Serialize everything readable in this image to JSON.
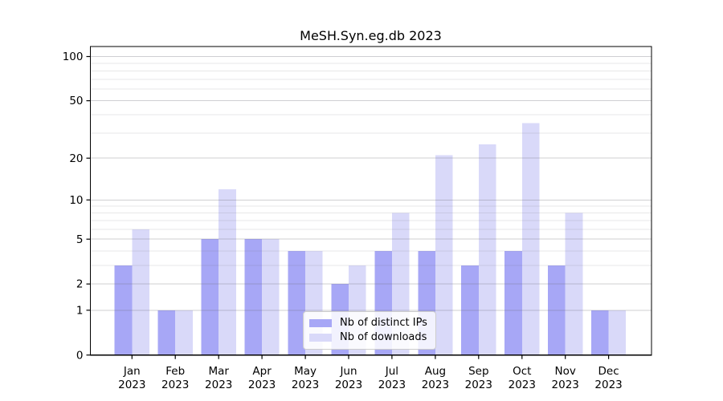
{
  "chart_data": {
    "type": "bar",
    "title": "MeSH.Syn.eg.db 2023",
    "months": [
      "Jan",
      "Feb",
      "Mar",
      "Apr",
      "May",
      "Jun",
      "Jul",
      "Aug",
      "Sep",
      "Oct",
      "Nov",
      "Dec"
    ],
    "year_label": "2023",
    "categories": [
      "Jan 2023",
      "Feb 2023",
      "Mar 2023",
      "Apr 2023",
      "May 2023",
      "Jun 2023",
      "Jul 2023",
      "Aug 2023",
      "Sep 2023",
      "Oct 2023",
      "Nov 2023",
      "Dec 2023"
    ],
    "series": [
      {
        "name": "Nb of distinct IPs",
        "color": "#a7a7f6",
        "values": [
          3,
          1,
          5,
          5,
          4,
          2,
          4,
          4,
          3,
          4,
          3,
          1
        ]
      },
      {
        "name": "Nb of downloads",
        "color": "#d9d9f9",
        "values": [
          6,
          1,
          12,
          5,
          4,
          3,
          8,
          21,
          25,
          35,
          8,
          1
        ]
      }
    ],
    "yscale": "log1p",
    "yticks": [
      0,
      1,
      2,
      5,
      10,
      20,
      50,
      100
    ],
    "minor_gridlines": [
      3,
      4,
      6,
      7,
      8,
      9,
      30,
      40,
      60,
      70,
      80,
      90
    ],
    "ylim": [
      0,
      117
    ],
    "grid": true,
    "legend_position": "bottom-center",
    "axis_color": "#000000",
    "major_grid_color": "rgba(105,105,115,0.32)",
    "minor_grid_color": "rgba(120,120,130,0.18)"
  }
}
